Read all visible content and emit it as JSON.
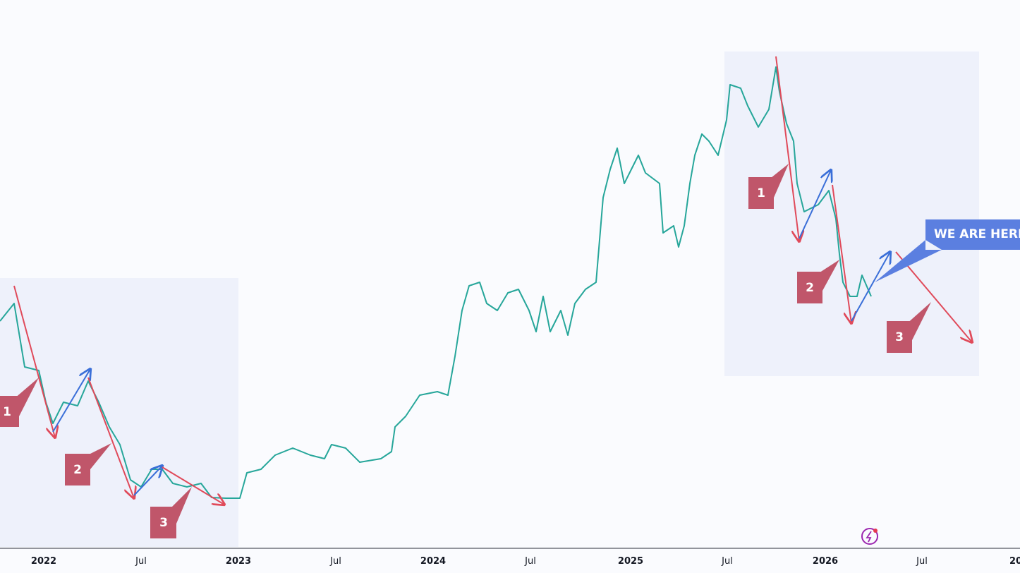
{
  "x_axis": {
    "labels": [
      "2022",
      "Jul",
      "2023",
      "Jul",
      "2024",
      "Jul",
      "2025",
      "Jul",
      "2026",
      "Jul",
      "20"
    ]
  },
  "annotations": {
    "left": [
      "1",
      "2",
      "3"
    ],
    "right": [
      "1",
      "2",
      "3"
    ],
    "callout": "WE ARE HERE"
  }
}
